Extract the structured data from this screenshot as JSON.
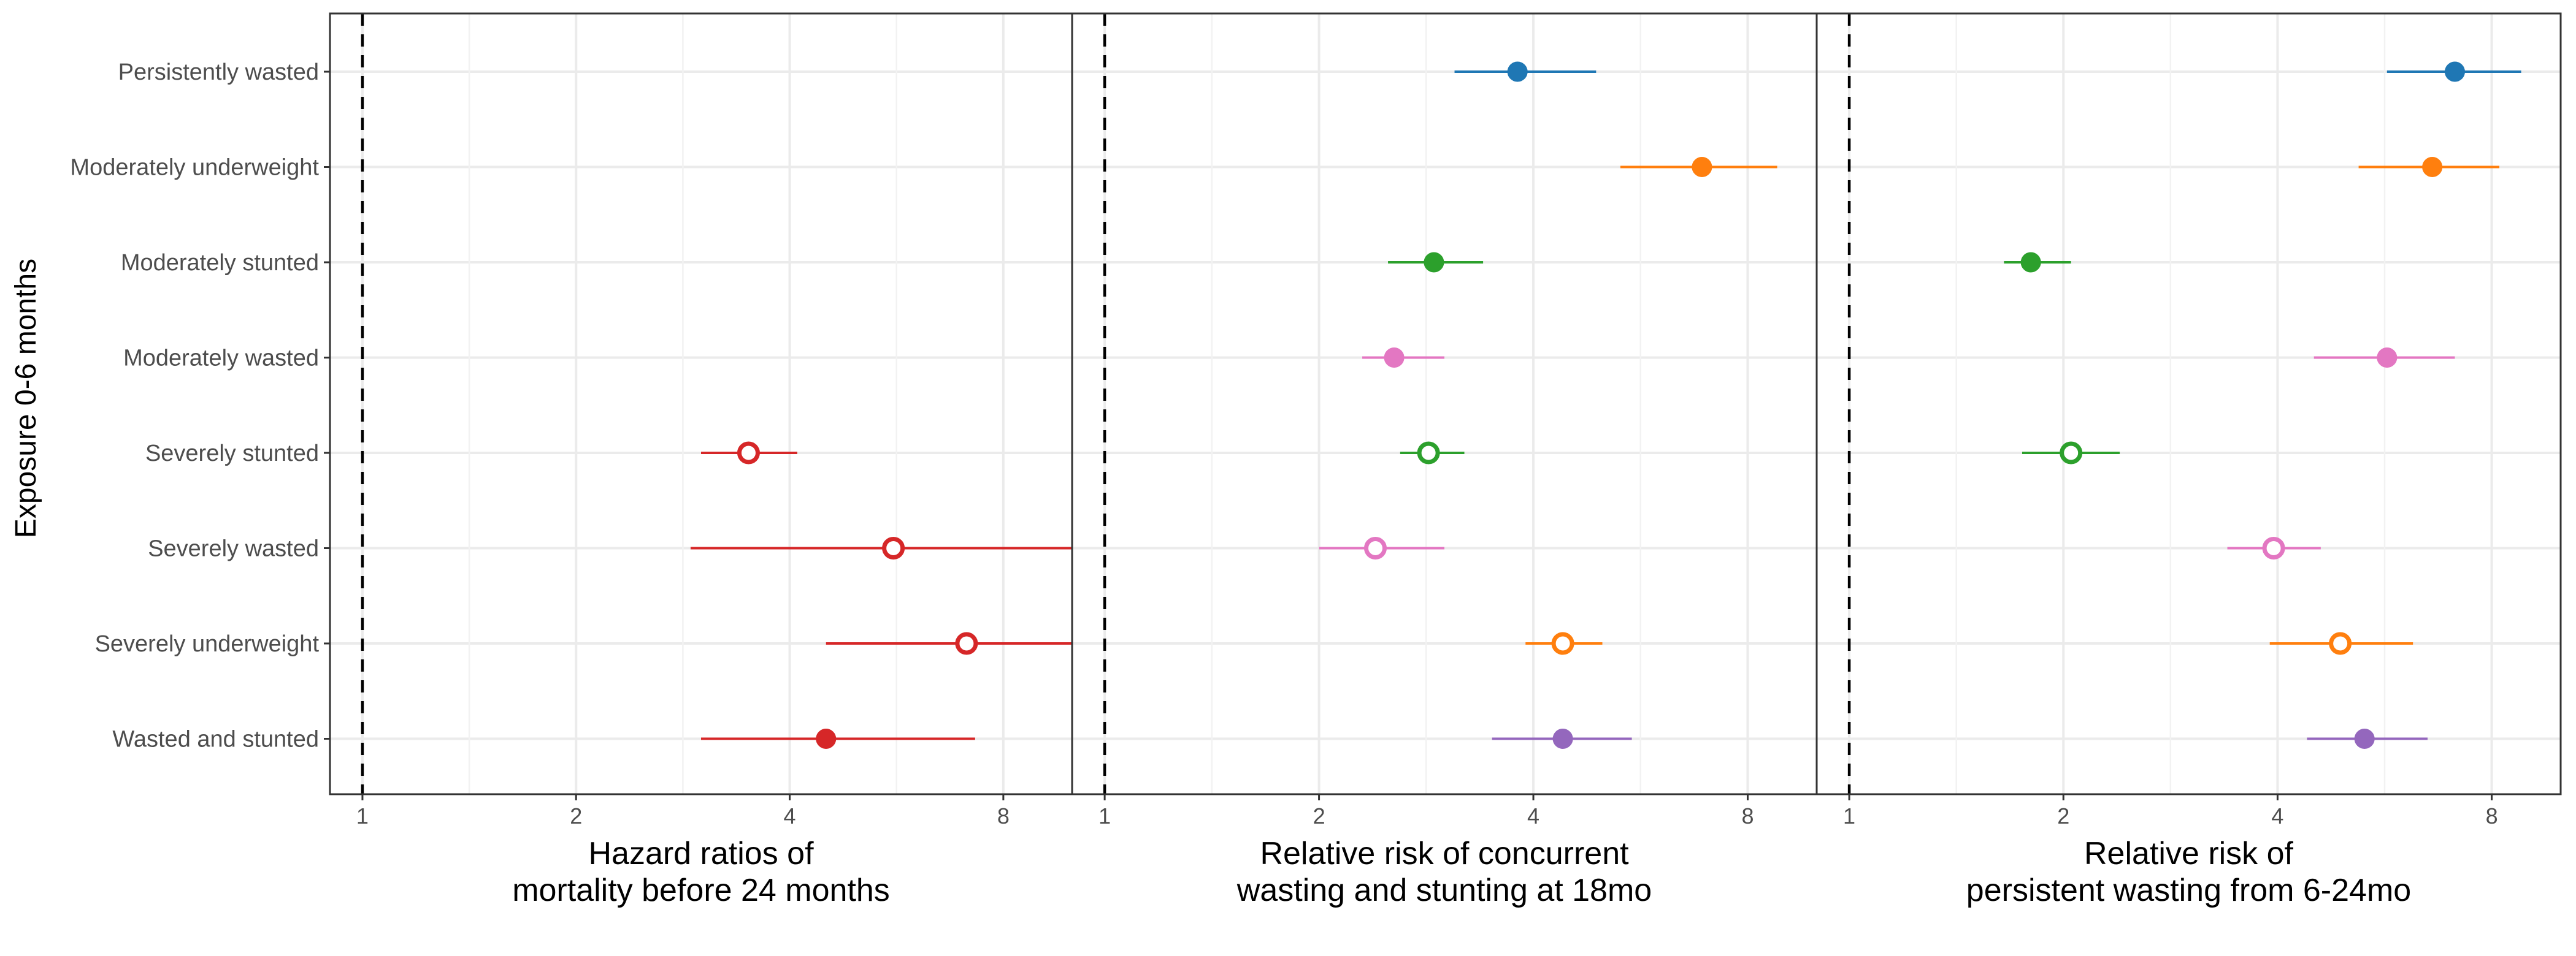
{
  "chart_data": {
    "type": "scatter",
    "subtype": "forest-plot",
    "y_axis_title": "Exposure 0-6 months",
    "categories": [
      "Persistently wasted",
      "Moderately underweight",
      "Moderately stunted",
      "Moderately wasted",
      "Severely stunted",
      "Severely wasted",
      "Severely underweight",
      "Wasted and stunted"
    ],
    "colors": {
      "Persistently wasted": "#1f77b4",
      "Moderately underweight": "#ff7f0e",
      "Moderately stunted": "#2ca02c",
      "Moderately wasted": "#e377c2",
      "Severely stunted": "#2ca02c",
      "Severely wasted": "#e377c2",
      "Severely underweight": "#ff7f0e",
      "Wasted and stunted": "#9467bd"
    },
    "mortality_color": "#d62728",
    "marker_style": {
      "filled": [
        "Persistently wasted",
        "Moderately underweight",
        "Moderately stunted",
        "Moderately wasted",
        "Wasted and stunted"
      ],
      "hollow": [
        "Severely stunted",
        "Severely wasted",
        "Severely underweight"
      ]
    },
    "x_scale": "log",
    "reference_value": 1,
    "panels": [
      {
        "xlabel_lines": [
          "Hazard ratios of",
          "mortality before 24 months"
        ],
        "x_ticks": [
          1,
          2,
          4,
          8
        ],
        "xlim": [
          0.9,
          10
        ],
        "color_override": "#d62728",
        "points": [
          {
            "category": "Severely stunted",
            "estimate": 3.5,
            "ci_low": 3.0,
            "ci_high": 4.1
          },
          {
            "category": "Severely wasted",
            "estimate": 5.6,
            "ci_low": 2.9,
            "ci_high": 10
          },
          {
            "category": "Severely underweight",
            "estimate": 7.1,
            "ci_low": 4.5,
            "ci_high": 10
          },
          {
            "category": "Wasted and stunted",
            "estimate": 4.5,
            "ci_low": 3.0,
            "ci_high": 7.3
          }
        ]
      },
      {
        "xlabel_lines": [
          "Relative risk of concurrent",
          "wasting and stunting at 18mo"
        ],
        "x_ticks": [
          1,
          2,
          4,
          8
        ],
        "xlim": [
          0.9,
          10
        ],
        "points": [
          {
            "category": "Persistently wasted",
            "estimate": 3.8,
            "ci_low": 3.1,
            "ci_high": 4.9
          },
          {
            "category": "Moderately underweight",
            "estimate": 6.9,
            "ci_low": 5.3,
            "ci_high": 8.8
          },
          {
            "category": "Moderately stunted",
            "estimate": 2.9,
            "ci_low": 2.5,
            "ci_high": 3.4
          },
          {
            "category": "Moderately wasted",
            "estimate": 2.55,
            "ci_low": 2.3,
            "ci_high": 3.0
          },
          {
            "category": "Severely stunted",
            "estimate": 2.85,
            "ci_low": 2.6,
            "ci_high": 3.2
          },
          {
            "category": "Severely wasted",
            "estimate": 2.4,
            "ci_low": 2.0,
            "ci_high": 3.0
          },
          {
            "category": "Severely underweight",
            "estimate": 4.4,
            "ci_low": 3.9,
            "ci_high": 5.0
          },
          {
            "category": "Wasted and stunted",
            "estimate": 4.4,
            "ci_low": 3.5,
            "ci_high": 5.5
          }
        ]
      },
      {
        "xlabel_lines": [
          "Relative risk of",
          "persistent wasting from 6-24mo"
        ],
        "x_ticks": [
          1,
          2,
          4,
          8
        ],
        "xlim": [
          0.9,
          10
        ],
        "points": [
          {
            "category": "Persistently wasted",
            "estimate": 7.1,
            "ci_low": 5.7,
            "ci_high": 8.8
          },
          {
            "category": "Moderately underweight",
            "estimate": 6.6,
            "ci_low": 5.2,
            "ci_high": 8.2
          },
          {
            "category": "Moderately stunted",
            "estimate": 1.8,
            "ci_low": 1.65,
            "ci_high": 2.05
          },
          {
            "category": "Moderately wasted",
            "estimate": 5.7,
            "ci_low": 4.5,
            "ci_high": 7.1
          },
          {
            "category": "Severely stunted",
            "estimate": 2.05,
            "ci_low": 1.75,
            "ci_high": 2.4
          },
          {
            "category": "Severely wasted",
            "estimate": 3.95,
            "ci_low": 3.4,
            "ci_high": 4.6
          },
          {
            "category": "Severely underweight",
            "estimate": 4.9,
            "ci_low": 3.9,
            "ci_high": 6.2
          },
          {
            "category": "Wasted and stunted",
            "estimate": 5.3,
            "ci_low": 4.4,
            "ci_high": 6.5
          }
        ]
      }
    ],
    "grid": true,
    "legend": "none"
  }
}
